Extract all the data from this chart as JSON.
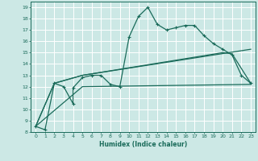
{
  "xlabel": "Humidex (Indice chaleur)",
  "xlim": [
    -0.5,
    23.5
  ],
  "ylim": [
    8,
    19.5
  ],
  "yticks": [
    8,
    9,
    10,
    11,
    12,
    13,
    14,
    15,
    16,
    17,
    18,
    19
  ],
  "xticks": [
    0,
    1,
    2,
    3,
    4,
    5,
    6,
    7,
    8,
    9,
    10,
    11,
    12,
    13,
    14,
    15,
    16,
    17,
    18,
    19,
    20,
    21,
    22,
    23
  ],
  "background_color": "#cce8e5",
  "grid_color": "#b0d8d4",
  "line_color": "#1a6b5a",
  "line1": {
    "x": [
      0,
      1,
      2,
      3,
      4,
      4,
      5,
      6,
      7,
      8,
      9,
      10,
      11,
      12,
      13,
      14,
      15,
      16,
      17,
      18,
      19,
      20,
      21,
      22,
      23
    ],
    "y": [
      8.5,
      8.2,
      12.3,
      12.0,
      10.5,
      11.9,
      12.8,
      13.0,
      13.0,
      12.2,
      12.0,
      16.4,
      18.2,
      19.0,
      17.5,
      17.0,
      17.2,
      17.4,
      17.4,
      16.5,
      15.8,
      15.3,
      14.8,
      13.0,
      12.3
    ]
  },
  "line2_x": [
    0,
    2,
    5,
    23
  ],
  "line2_y": [
    8.5,
    12.3,
    13.0,
    15.3
  ],
  "line3_x": [
    0,
    2,
    5,
    20,
    21,
    23
  ],
  "line3_y": [
    8.5,
    12.3,
    13.0,
    15.0,
    14.9,
    12.3
  ],
  "line4_x": [
    0,
    5,
    23
  ],
  "line4_y": [
    8.5,
    12.0,
    12.2
  ]
}
